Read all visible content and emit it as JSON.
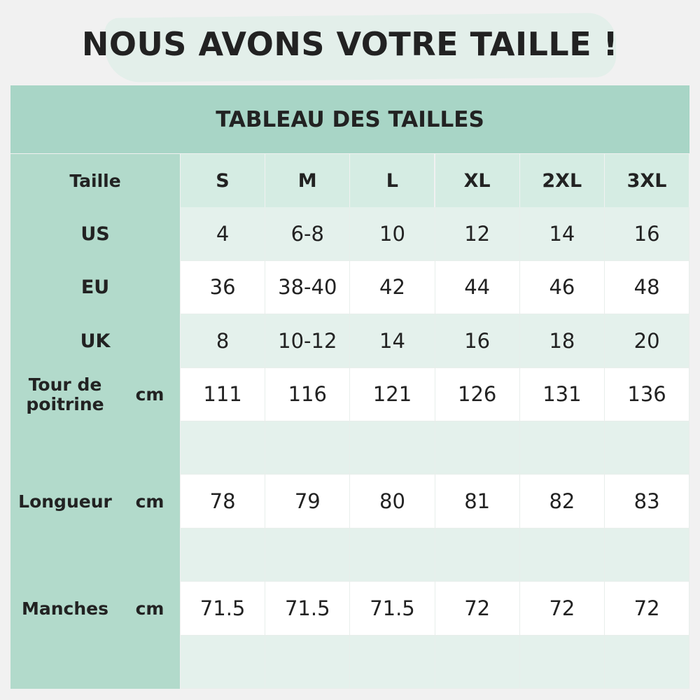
{
  "header": {
    "title": "NOUS AVONS VOTRE TAILLE !"
  },
  "table": {
    "title": "TABLEAU DES TAILLES",
    "columns": [
      "Taille",
      "S",
      "M",
      "L",
      "XL",
      "2XL",
      "3XL"
    ],
    "rows": [
      {
        "label": "US",
        "values": [
          "4",
          "6-8",
          "10",
          "12",
          "14",
          "16"
        ]
      },
      {
        "label": "EU",
        "values": [
          "36",
          "38-40",
          "42",
          "44",
          "46",
          "48"
        ]
      },
      {
        "label": "UK",
        "values": [
          "8",
          "10-12",
          "14",
          "16",
          "18",
          "20"
        ]
      },
      {
        "label": "Tour de poitrine",
        "unit": "cm",
        "values": [
          "111",
          "116",
          "121",
          "126",
          "131",
          "136"
        ]
      },
      {
        "label": "Longueur",
        "unit": "cm",
        "values": [
          "78",
          "79",
          "80",
          "81",
          "82",
          "83"
        ]
      },
      {
        "label": "Manches",
        "unit": "cm",
        "values": [
          "71.5",
          "71.5",
          "71.5",
          "72",
          "72",
          "72"
        ]
      }
    ]
  }
}
